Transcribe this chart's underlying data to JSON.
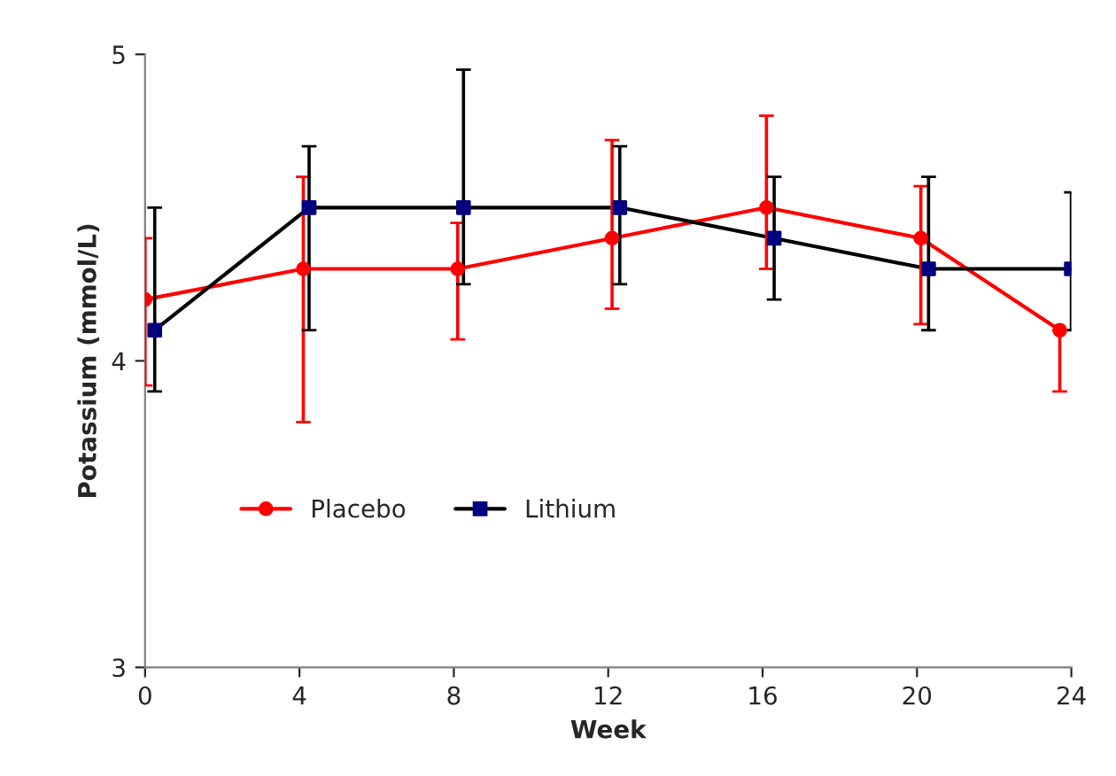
{
  "chart_data": {
    "type": "line",
    "xlabel": "Week",
    "ylabel": "Potassium (mmol/L)",
    "xlim": [
      0,
      24
    ],
    "xticks": [
      0,
      4,
      8,
      12,
      16,
      20,
      24
    ],
    "ylim": [
      3,
      5
    ],
    "yticks": [
      3,
      4,
      5
    ],
    "grid": false,
    "legend": "bottom left",
    "series": [
      {
        "name": "Placebo",
        "color": "#ff0000",
        "marker": "circle",
        "x": [
          0,
          4.1,
          8.1,
          12.1,
          16.1,
          20.1,
          23.7
        ],
        "values": [
          4.2,
          4.3,
          4.3,
          4.4,
          4.5,
          4.4,
          4.1
        ],
        "errors": [
          [
            3.92,
            4.4
          ],
          [
            3.8,
            4.6
          ],
          [
            4.07,
            4.45
          ],
          [
            4.17,
            4.72
          ],
          [
            4.3,
            4.8
          ],
          [
            4.12,
            4.57
          ],
          [
            3.9,
            4.1
          ]
        ]
      },
      {
        "name": "Lithium",
        "color": "#000000",
        "colors": [
          "#000080",
          "#000080",
          "#000080",
          "#000080",
          "#000080",
          "#000080",
          "#000080"
        ],
        "marker": "square",
        "x": [
          0.25,
          4.25,
          8.25,
          12.3,
          16.3,
          20.3,
          24
        ],
        "values": [
          4.1,
          4.5,
          4.5,
          4.5,
          4.4,
          4.3,
          4.3
        ],
        "errors": [
          [
            3.9,
            4.5
          ],
          [
            4.1,
            4.7
          ],
          [
            4.25,
            4.95
          ],
          [
            4.25,
            4.7
          ],
          [
            4.2,
            4.6
          ],
          [
            4.1,
            4.6
          ],
          [
            4.1,
            4.55
          ]
        ]
      }
    ]
  }
}
